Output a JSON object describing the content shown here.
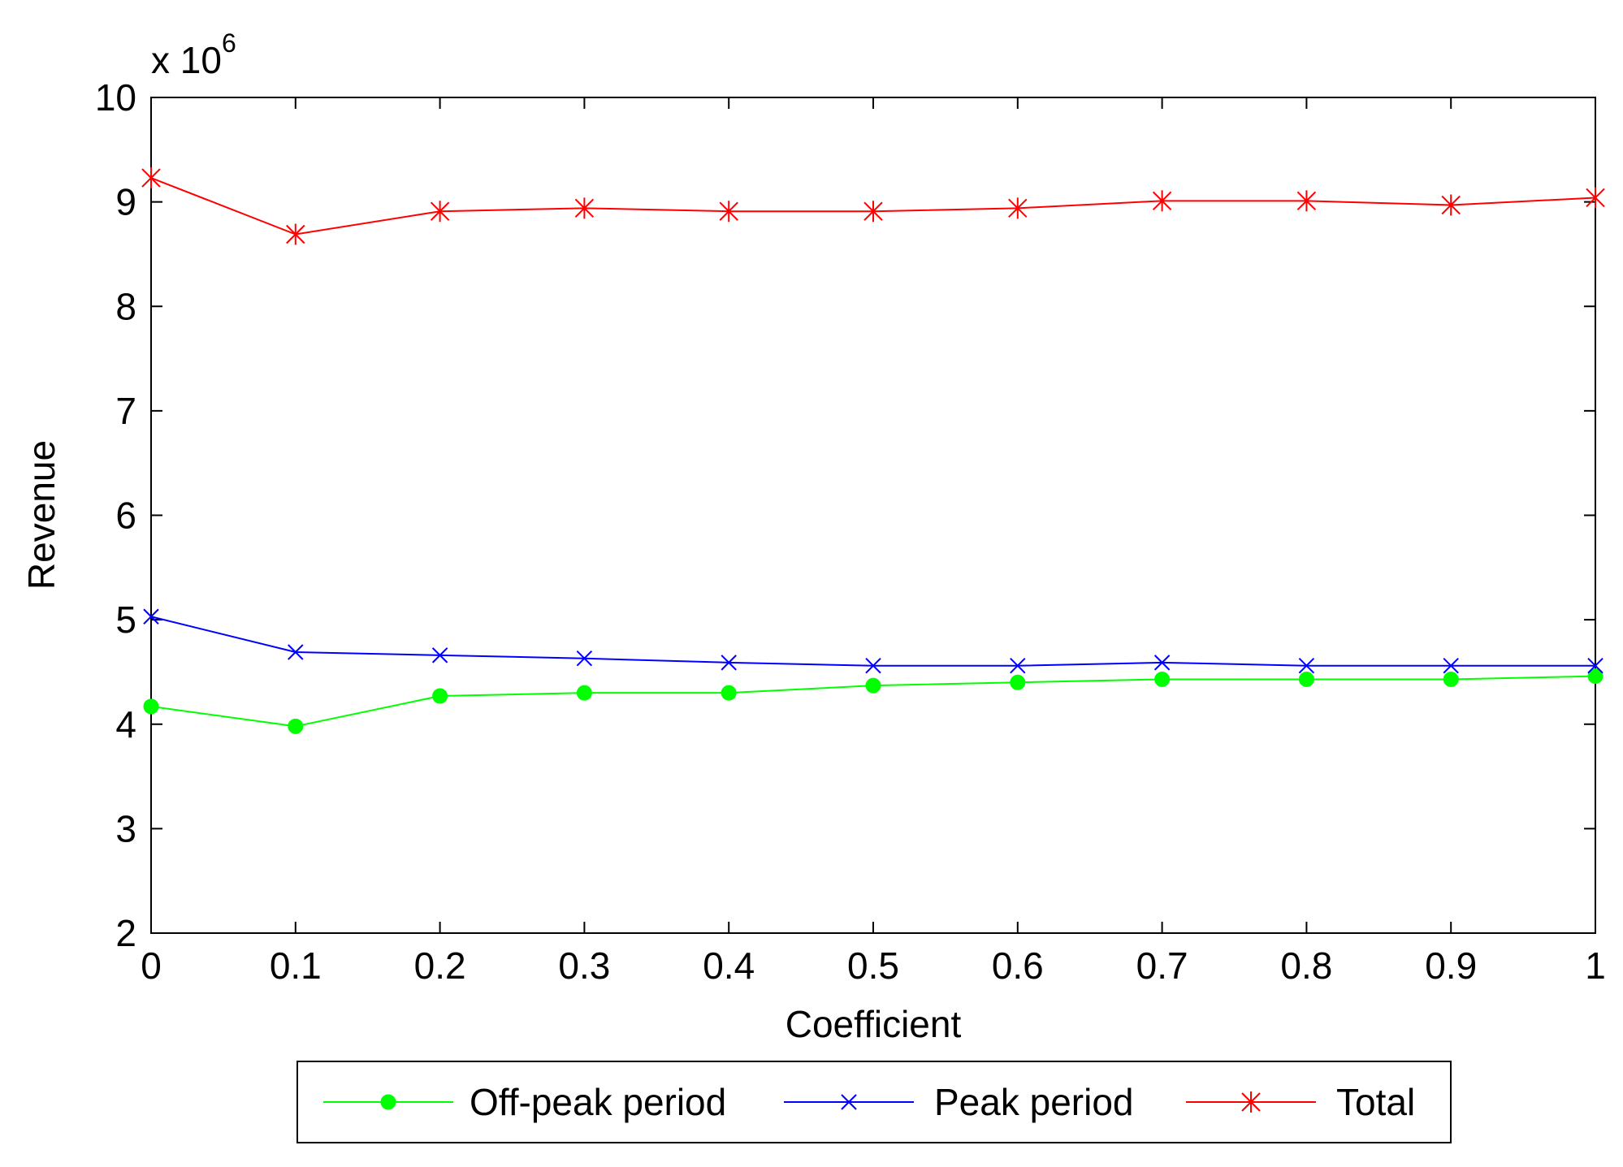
{
  "chart_data": {
    "type": "line",
    "title": "",
    "xlabel": "Coefficient",
    "ylabel": "Revenue",
    "y_multiplier": {
      "base": "x 10",
      "exponent": "6"
    },
    "x": [
      0,
      0.1,
      0.2,
      0.3,
      0.4,
      0.5,
      0.6,
      0.7,
      0.8,
      0.9,
      1
    ],
    "xlim": [
      0,
      1
    ],
    "ylim": [
      2,
      10
    ],
    "x_ticks": [
      0,
      0.1,
      0.2,
      0.3,
      0.4,
      0.5,
      0.6,
      0.7,
      0.8,
      0.9,
      1
    ],
    "x_tick_labels": [
      "0",
      "0.1",
      "0.2",
      "0.3",
      "0.4",
      "0.5",
      "0.6",
      "0.7",
      "0.8",
      "0.9",
      "1"
    ],
    "y_ticks": [
      2,
      3,
      4,
      5,
      6,
      7,
      8,
      9,
      10
    ],
    "y_tick_labels": [
      "2",
      "3",
      "4",
      "5",
      "6",
      "7",
      "8",
      "9",
      "10"
    ],
    "grid": false,
    "legend_position": "bottom-outside",
    "series": [
      {
        "name": "Off-peak period",
        "color": "#00ff00",
        "marker": "circle",
        "values": [
          4.17,
          3.98,
          4.27,
          4.3,
          4.3,
          4.37,
          4.4,
          4.43,
          4.43,
          4.43,
          4.46
        ]
      },
      {
        "name": "Peak period",
        "color": "#0000ff",
        "marker": "x",
        "values": [
          5.03,
          4.69,
          4.66,
          4.63,
          4.59,
          4.56,
          4.56,
          4.59,
          4.56,
          4.56,
          4.56
        ]
      },
      {
        "name": "Total",
        "color": "#ff0000",
        "marker": "star",
        "values": [
          9.23,
          8.69,
          8.91,
          8.94,
          8.91,
          8.91,
          8.94,
          9.01,
          9.01,
          8.97,
          9.04
        ]
      }
    ]
  }
}
